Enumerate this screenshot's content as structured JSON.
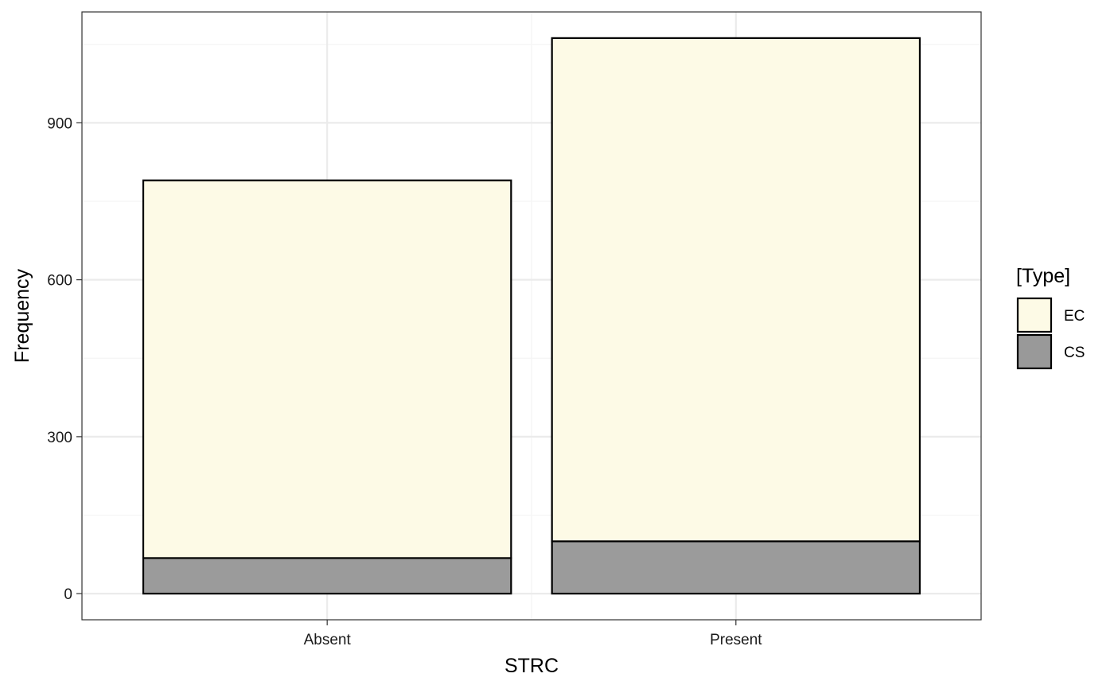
{
  "chart_data": {
    "type": "bar",
    "stacked": true,
    "categories": [
      "Absent",
      "Present"
    ],
    "series": [
      {
        "name": "CS",
        "values": [
          68,
          100
        ],
        "color": "#999999"
      },
      {
        "name": "EC",
        "values": [
          722,
          962
        ],
        "color": "#fdfae6"
      }
    ],
    "totals": [
      790,
      1062
    ],
    "xlabel": "STRC",
    "ylabel": "Frequency",
    "yticks": [
      0,
      300,
      600,
      900
    ],
    "ylim": [
      -50,
      1112
    ],
    "grid": true,
    "legend": {
      "title": "[Type]",
      "placement": "right",
      "entries": [
        {
          "label": "EC",
          "color": "#fdfae6"
        },
        {
          "label": "CS",
          "color": "#999999"
        }
      ]
    },
    "colors": {
      "panel_border": "#333333",
      "grid_major": "#ebebeb",
      "grid_minor": "#f5f5f5",
      "bar_outline": "#000000"
    }
  }
}
